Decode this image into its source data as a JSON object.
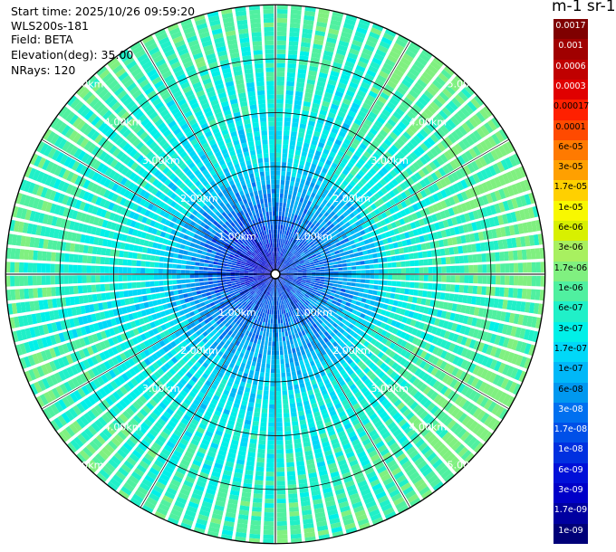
{
  "header": {
    "start_time": "Start time: 2025/10/26 09:59:20",
    "instrument": "WLS200s-181",
    "field": "Field: BETA",
    "elevation": "Elevation(deg): 35.00",
    "nrays": "NRays: 120"
  },
  "colorbar": {
    "unit_label": "m-1 sr-1",
    "labels": [
      "0.0017",
      "0.001",
      "0.0006",
      "0.0003",
      "0.00017",
      "0.0001",
      "6e-05",
      "3e-05",
      "1.7e-05",
      "1e-05",
      "6e-06",
      "3e-06",
      "1.7e-06",
      "1e-06",
      "6e-07",
      "3e-07",
      "1.7e-07",
      "1e-07",
      "6e-08",
      "3e-08",
      "1.7e-08",
      "1e-08",
      "6e-09",
      "3e-09",
      "1.7e-09",
      "1e-09"
    ],
    "colors": [
      "#7f0000",
      "#a00000",
      "#c00000",
      "#e00000",
      "#ff2000",
      "#ff4a00",
      "#ff7a00",
      "#ffa000",
      "#ffd000",
      "#f8f800",
      "#d8f000",
      "#a8f060",
      "#80f080",
      "#50f0a0",
      "#20f0c8",
      "#00f0e8",
      "#00d8f8",
      "#00b8f8",
      "#0098f0",
      "#0070f0",
      "#0050e8",
      "#0030e0",
      "#0010d8",
      "#0000c8",
      "#0000a0",
      "#000078"
    ],
    "text_colors": [
      "#fff",
      "#fff",
      "#fff",
      "#fff",
      "#000",
      "#000",
      "#000",
      "#000",
      "#000",
      "#000",
      "#000",
      "#000",
      "#000",
      "#000",
      "#000",
      "#000",
      "#000",
      "#000",
      "#000",
      "#fff",
      "#fff",
      "#fff",
      "#fff",
      "#fff",
      "#fff",
      "#fff"
    ]
  },
  "chart_data": {
    "type": "heatmap",
    "projection": "polar",
    "field": "BETA",
    "elevation_deg": 35.0,
    "n_rays": 120,
    "range_rings_km": [
      1.0,
      2.0,
      3.0,
      4.0,
      5.0
    ],
    "ring_labels": [
      "1.00km",
      "2.00km",
      "3.00km",
      "4.00km",
      "5.00km"
    ],
    "max_range_km": 5.0,
    "value_range": [
      1e-09,
      0.0017
    ],
    "color_scale": "log",
    "spoke_angles_deg": [
      0,
      30,
      60,
      90,
      120,
      150,
      180,
      210,
      240,
      270,
      300,
      330
    ],
    "dominant_values": "mostly 3e-08 to 3e-07; lowest values (1e-09 to 1e-08) near center toward west/north-west"
  }
}
